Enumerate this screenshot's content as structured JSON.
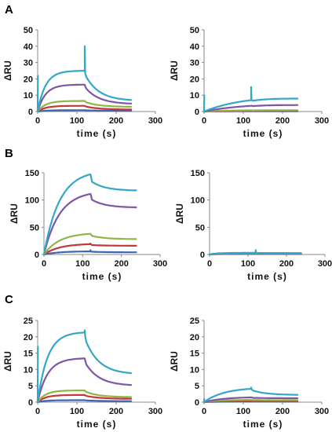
{
  "figure": {
    "panel_labels": [
      "A",
      "B",
      "C"
    ],
    "colors": {
      "blue": "#3d64b5",
      "red": "#c0393b",
      "green": "#93b447",
      "purple": "#7e56a6",
      "cyan": "#35a7c6"
    }
  },
  "chart_data": [
    {
      "type": "line",
      "panel": "A",
      "xlabel": "time (s)",
      "ylabel": "ΔRU",
      "xlim": [
        0,
        300
      ],
      "ylim": [
        0,
        50
      ],
      "xticks": [
        0,
        100,
        200,
        300
      ],
      "yticks": [
        0,
        10,
        20,
        30,
        40,
        50
      ],
      "grid": false,
      "legend": "none",
      "injection_end": 120,
      "end_time": 240,
      "series": [
        {
          "color": "#3d64b5",
          "plateau": 0.8,
          "rate": 0.05,
          "end_value": 0.5,
          "spike": 0.3
        },
        {
          "color": "#c0393b",
          "plateau": 3.5,
          "rate": 0.05,
          "end_value": 1.2,
          "spike": 0.5
        },
        {
          "color": "#93b447",
          "plateau": 6.5,
          "rate": 0.05,
          "end_value": 2.8,
          "spike": 1
        },
        {
          "color": "#7e56a6",
          "plateau": 16.5,
          "rate": 0.05,
          "end_value": 4.5,
          "spike": 1.5
        },
        {
          "color": "#35a7c6",
          "plateau": 25,
          "rate": 0.05,
          "end_value": 6.5,
          "spike": 40,
          "start_spike": 22
        }
      ]
    },
    {
      "type": "line",
      "panel": "A-right",
      "xlabel": "time (s)",
      "ylabel": "ΔRU",
      "xlim": [
        0,
        300
      ],
      "ylim": [
        0,
        50
      ],
      "xticks": [
        0,
        100,
        200,
        300
      ],
      "yticks": [
        0,
        10,
        20,
        30,
        40,
        50
      ],
      "grid": false,
      "legend": "none",
      "injection_end": 120,
      "end_time": 240,
      "series": [
        {
          "color": "#3d64b5",
          "plateau": 0.2,
          "rate": 0.02,
          "end_value": 0.2,
          "spike": 0
        },
        {
          "color": "#c0393b",
          "plateau": 0.4,
          "rate": 0.02,
          "end_value": 0.4,
          "spike": 0
        },
        {
          "color": "#93b447",
          "plateau": 0.8,
          "rate": 0.02,
          "end_value": 0.8,
          "spike": 0
        },
        {
          "color": "#7e56a6",
          "plateau": 5,
          "rate": 0.01,
          "end_value": 4,
          "spike": 0
        },
        {
          "color": "#35a7c6",
          "plateau": 10,
          "rate": 0.01,
          "end_value": 8,
          "spike": 15,
          "start_spike": 10
        }
      ]
    },
    {
      "type": "line",
      "panel": "B",
      "xlabel": "time (s)",
      "ylabel": "ΔRU",
      "xlim": [
        0,
        300
      ],
      "ylim": [
        0,
        150
      ],
      "xticks": [
        0,
        100,
        200,
        300
      ],
      "yticks": [
        0,
        50,
        100,
        150
      ],
      "grid": false,
      "legend": "none",
      "injection_end": 120,
      "end_time": 240,
      "series": [
        {
          "color": "#3d64b5",
          "plateau": 6,
          "rate": 0.025,
          "end_value": 4,
          "spike": 8
        },
        {
          "color": "#c0393b",
          "plateau": 20,
          "rate": 0.025,
          "end_value": 16,
          "spike": 20
        },
        {
          "color": "#93b447",
          "plateau": 40,
          "rate": 0.025,
          "end_value": 28,
          "spike": 36
        },
        {
          "color": "#7e56a6",
          "plateau": 117,
          "rate": 0.025,
          "end_value": 86,
          "spike": 110
        },
        {
          "color": "#35a7c6",
          "plateau": 155,
          "rate": 0.025,
          "end_value": 117,
          "spike": 142
        }
      ]
    },
    {
      "type": "line",
      "panel": "B-right",
      "xlabel": "time (s)",
      "ylabel": "ΔRU",
      "xlim": [
        0,
        300
      ],
      "ylim": [
        0,
        150
      ],
      "xticks": [
        0,
        100,
        200,
        300
      ],
      "yticks": [
        0,
        50,
        100,
        150
      ],
      "grid": false,
      "legend": "none",
      "injection_end": 120,
      "end_time": 240,
      "series": [
        {
          "color": "#3d64b5",
          "plateau": 1,
          "rate": 0.05,
          "end_value": 1,
          "spike": 0
        },
        {
          "color": "#c0393b",
          "plateau": 1.5,
          "rate": 0.05,
          "end_value": 1.5,
          "spike": 0
        },
        {
          "color": "#93b447",
          "plateau": 2,
          "rate": 0.05,
          "end_value": 2,
          "spike": 0
        },
        {
          "color": "#7e56a6",
          "plateau": 2.5,
          "rate": 0.05,
          "end_value": 2.5,
          "spike": 0
        },
        {
          "color": "#35a7c6",
          "plateau": 3,
          "rate": 0.05,
          "end_value": 2.5,
          "spike": 8
        }
      ]
    },
    {
      "type": "line",
      "panel": "C",
      "xlabel": "time (s)",
      "ylabel": "ΔRU",
      "xlim": [
        0,
        300
      ],
      "ylim": [
        0,
        25
      ],
      "xticks": [
        0,
        100,
        200,
        300
      ],
      "yticks": [
        0,
        5,
        10,
        15,
        20,
        25
      ],
      "grid": false,
      "legend": "none",
      "injection_end": 120,
      "end_time": 240,
      "series": [
        {
          "color": "#3d64b5",
          "plateau": 0.6,
          "rate": 0.05,
          "end_value": 0.3,
          "spike": 0.5
        },
        {
          "color": "#c0393b",
          "plateau": 2.2,
          "rate": 0.05,
          "end_value": 1,
          "spike": 2
        },
        {
          "color": "#93b447",
          "plateau": 3.6,
          "rate": 0.05,
          "end_value": 1.5,
          "spike": 3.5
        },
        {
          "color": "#7e56a6",
          "plateau": 13.5,
          "rate": 0.04,
          "end_value": 5,
          "spike": 13
        },
        {
          "color": "#35a7c6",
          "plateau": 21.5,
          "rate": 0.04,
          "end_value": 8.5,
          "spike": 22,
          "start_spike": 17
        }
      ]
    },
    {
      "type": "line",
      "panel": "C-right",
      "xlabel": "time (s)",
      "ylabel": "ΔRU",
      "xlim": [
        0,
        300
      ],
      "ylim": [
        0,
        25
      ],
      "xticks": [
        0,
        100,
        200,
        300
      ],
      "yticks": [
        0,
        5,
        10,
        15,
        20,
        25
      ],
      "grid": false,
      "legend": "none",
      "injection_end": 120,
      "end_time": 240,
      "series": [
        {
          "color": "#3d64b5",
          "plateau": 0.2,
          "rate": 0.03,
          "end_value": 0.2,
          "spike": 0
        },
        {
          "color": "#c0393b",
          "plateau": 0.4,
          "rate": 0.03,
          "end_value": 0.4,
          "spike": 0
        },
        {
          "color": "#93b447",
          "plateau": 0.7,
          "rate": 0.03,
          "end_value": 0.6,
          "spike": 0
        },
        {
          "color": "#7e56a6",
          "plateau": 1.6,
          "rate": 0.02,
          "end_value": 1.2,
          "spike": 0
        },
        {
          "color": "#35a7c6",
          "plateau": 4.5,
          "rate": 0.02,
          "end_value": 2.2,
          "spike": 4.5,
          "start_spike": 1
        }
      ]
    }
  ]
}
